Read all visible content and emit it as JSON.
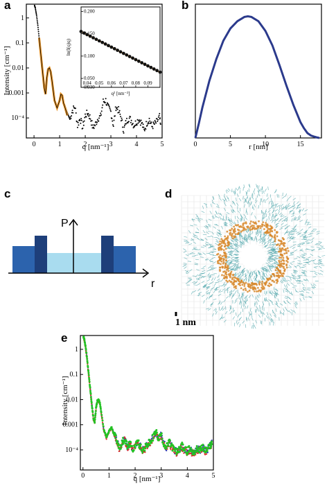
{
  "labels": {
    "a": "a",
    "b": "b",
    "c": "c",
    "d": "d",
    "e": "e"
  },
  "colors": {
    "data": "#000000",
    "fit": "#e8962b",
    "profile": "#2b3a8c",
    "ring_teal": "#4aa3a8",
    "ring_orange": "#d88a2e",
    "bar_dark": "#1e3f7a",
    "bar_mid": "#2c63ad",
    "bar_light": "#a9dcef",
    "e_green": "#22c322",
    "e_red": "#dd2a2a",
    "e_blue": "#2b3ab0"
  },
  "chart_data": [
    {
      "id": "a",
      "type": "scatter",
      "xlabel": "q [nm⁻¹]",
      "ylabel": "Intensity [cm⁻¹]",
      "xlim": [
        -0.3,
        5
      ],
      "ylim_log10": [
        -4.8,
        0.55
      ],
      "x_ticks": [
        "0",
        "1",
        "2",
        "3",
        "4",
        "5"
      ],
      "y_ticks": [
        "1",
        "0.1",
        "0.01",
        "0.001",
        "10⁻⁴"
      ],
      "series": [
        {
          "x": [
            0.02,
            0.05,
            0.1,
            0.15,
            0.2,
            0.25,
            0.3,
            0.35,
            0.4,
            0.45,
            0.5,
            0.55,
            0.6,
            0.65,
            0.7,
            0.75,
            0.8,
            0.9,
            1.0,
            1.05,
            1.1,
            1.15,
            1.2,
            1.3,
            1.4,
            1.5,
            1.6,
            1.7,
            1.8,
            1.9,
            2.0,
            2.1,
            2.2,
            2.3,
            2.4,
            2.5,
            2.6,
            2.7,
            2.8,
            2.9,
            3.0,
            3.1,
            3.2,
            3.3,
            3.4,
            3.5,
            3.6,
            3.7,
            3.8,
            3.9,
            4.0,
            4.1,
            4.2,
            4.3,
            4.4,
            4.5,
            4.6,
            4.7,
            4.8,
            4.9,
            4.95
          ],
          "log10_intensity": [
            0.5,
            0.4,
            0.1,
            -0.3,
            -0.8,
            -1.3,
            -1.8,
            -2.3,
            -2.8,
            -3.0,
            -2.4,
            -2.05,
            -2.0,
            -2.15,
            -2.5,
            -2.9,
            -3.3,
            -3.6,
            -3.3,
            -3.05,
            -3.1,
            -3.4,
            -3.5,
            -3.8,
            -4.05,
            -3.7,
            -3.55,
            -4.3,
            -4.0,
            -4.4,
            -3.9,
            -3.8,
            -4.0,
            -4.4,
            -4.25,
            -4.0,
            -3.95,
            -3.35,
            -3.3,
            -3.6,
            -3.75,
            -4.3,
            -3.55,
            -3.7,
            -4.0,
            -4.5,
            -4.15,
            -4.0,
            -4.1,
            -4.3,
            -4.15,
            -4.05,
            -4.2,
            -4.5,
            -4.2,
            -4.05,
            -4.35,
            -4.25,
            -4.15,
            -3.95,
            -4.45
          ]
        },
        {
          "x": [
            0.2,
            0.3,
            0.4,
            0.45,
            0.5,
            0.55,
            0.6,
            0.65,
            0.7,
            0.75,
            0.8,
            0.9,
            1.0,
            1.05,
            1.1,
            1.15,
            1.2,
            1.3
          ],
          "log10_intensity": [
            -0.8,
            -1.8,
            -2.8,
            -3.05,
            -2.4,
            -2.05,
            -2.0,
            -2.15,
            -2.5,
            -2.9,
            -3.3,
            -3.6,
            -3.3,
            -3.05,
            -3.1,
            -3.4,
            -3.55,
            -3.9
          ]
        }
      ]
    },
    {
      "id": "a-inset",
      "type": "scatter",
      "xlabel": "q² [nm⁻²]",
      "ylabel": "ln(I(q)q)",
      "xlim": [
        0.035,
        0.1
      ],
      "ylim": [
        0.03,
        0.21
      ],
      "x_ticks": [
        "0.04",
        "0.05",
        "0.06",
        "0.07",
        "0.08",
        "0.09"
      ],
      "y_ticks": [
        "0.030",
        "0.050",
        "0.100",
        "0.150",
        "0.200"
      ],
      "series": [
        {
          "x": [
            0.035,
            0.0375,
            0.04,
            0.0425,
            0.045,
            0.0475,
            0.05,
            0.0525,
            0.055,
            0.0575,
            0.06,
            0.0625,
            0.065,
            0.0675,
            0.07,
            0.0725,
            0.075,
            0.0775,
            0.08,
            0.0825,
            0.085,
            0.0875,
            0.09,
            0.0925,
            0.095,
            0.0975,
            0.1
          ],
          "y": [
            0.155,
            0.1515,
            0.148,
            0.1445,
            0.141,
            0.1375,
            0.134,
            0.1305,
            0.127,
            0.1235,
            0.12,
            0.1165,
            0.113,
            0.1095,
            0.106,
            0.1025,
            0.099,
            0.0955,
            0.092,
            0.0885,
            0.085,
            0.0815,
            0.078,
            0.0745,
            0.071,
            0.0675,
            0.064
          ]
        }
      ]
    },
    {
      "id": "b",
      "type": "line",
      "xlabel": "r [nm]",
      "ylabel": "",
      "xlim": [
        0,
        18
      ],
      "ylim": [
        0,
        1.1
      ],
      "x_ticks": [
        "0",
        "5",
        "10",
        "15"
      ],
      "series": [
        {
          "x": [
            0,
            0.5,
            1,
            2,
            3,
            4,
            5,
            6,
            7,
            7.5,
            8,
            9,
            10,
            11,
            12,
            13,
            14,
            15,
            15.5,
            16,
            16.5,
            17,
            17.3,
            17.7
          ],
          "y": [
            0,
            0.12,
            0.25,
            0.47,
            0.65,
            0.8,
            0.9,
            0.96,
            0.995,
            1.0,
            0.995,
            0.96,
            0.88,
            0.76,
            0.6,
            0.43,
            0.27,
            0.13,
            0.08,
            0.04,
            0.02,
            0.01,
            0.005,
            0
          ]
        }
      ]
    },
    {
      "id": "e",
      "type": "scatter",
      "xlabel": "q [nm⁻¹]",
      "ylabel": "Intensity [cm⁻¹]",
      "xlim": [
        -0.1,
        5
      ],
      "ylim_log10": [
        -4.8,
        0.55
      ],
      "x_ticks": [
        "0",
        "1",
        "2",
        "3",
        "4",
        "5"
      ],
      "y_ticks": [
        "1",
        "0.1",
        "0.01",
        "0.001",
        "10⁻⁴"
      ],
      "series": [
        {
          "x": [
            0.02,
            0.05,
            0.1,
            0.15,
            0.2,
            0.25,
            0.3,
            0.35,
            0.4,
            0.45,
            0.5,
            0.55,
            0.6,
            0.65,
            0.7,
            0.8,
            0.9,
            1.0,
            1.1,
            1.2,
            1.3,
            1.4,
            1.5,
            1.6,
            1.7,
            1.8,
            1.9,
            2.0,
            2.1,
            2.2,
            2.3,
            2.4,
            2.5,
            2.6,
            2.7,
            2.8,
            2.9,
            3.0,
            3.1,
            3.2,
            3.3,
            3.4,
            3.5,
            3.6,
            3.7,
            3.8,
            3.9,
            4.0,
            4.1,
            4.2,
            4.3,
            4.4,
            4.5,
            4.6,
            4.7,
            4.8,
            4.9,
            4.95
          ],
          "log10_intensity": [
            0.5,
            0.4,
            0.1,
            -0.3,
            -0.8,
            -1.3,
            -1.8,
            -2.3,
            -2.75,
            -2.9,
            -2.35,
            -2.05,
            -2.0,
            -2.15,
            -2.5,
            -3.2,
            -3.5,
            -3.25,
            -3.1,
            -3.4,
            -3.6,
            -3.95,
            -3.7,
            -3.55,
            -3.9,
            -3.75,
            -4.0,
            -3.8,
            -3.7,
            -3.85,
            -4.0,
            -3.9,
            -3.75,
            -3.7,
            -3.45,
            -3.3,
            -3.55,
            -3.4,
            -3.75,
            -3.9,
            -3.7,
            -3.85,
            -4.0,
            -4.1,
            -3.95,
            -3.85,
            -4.0,
            -4.05,
            -3.95,
            -4.1,
            -4.05,
            -3.95,
            -4.0,
            -3.9,
            -4.05,
            -3.95,
            -3.8,
            -3.7
          ]
        }
      ]
    }
  ],
  "panel_c": {
    "axis_y_label": "P",
    "axis_x_label": "r"
  },
  "panel_d": {
    "scale_label": "1 nm"
  }
}
